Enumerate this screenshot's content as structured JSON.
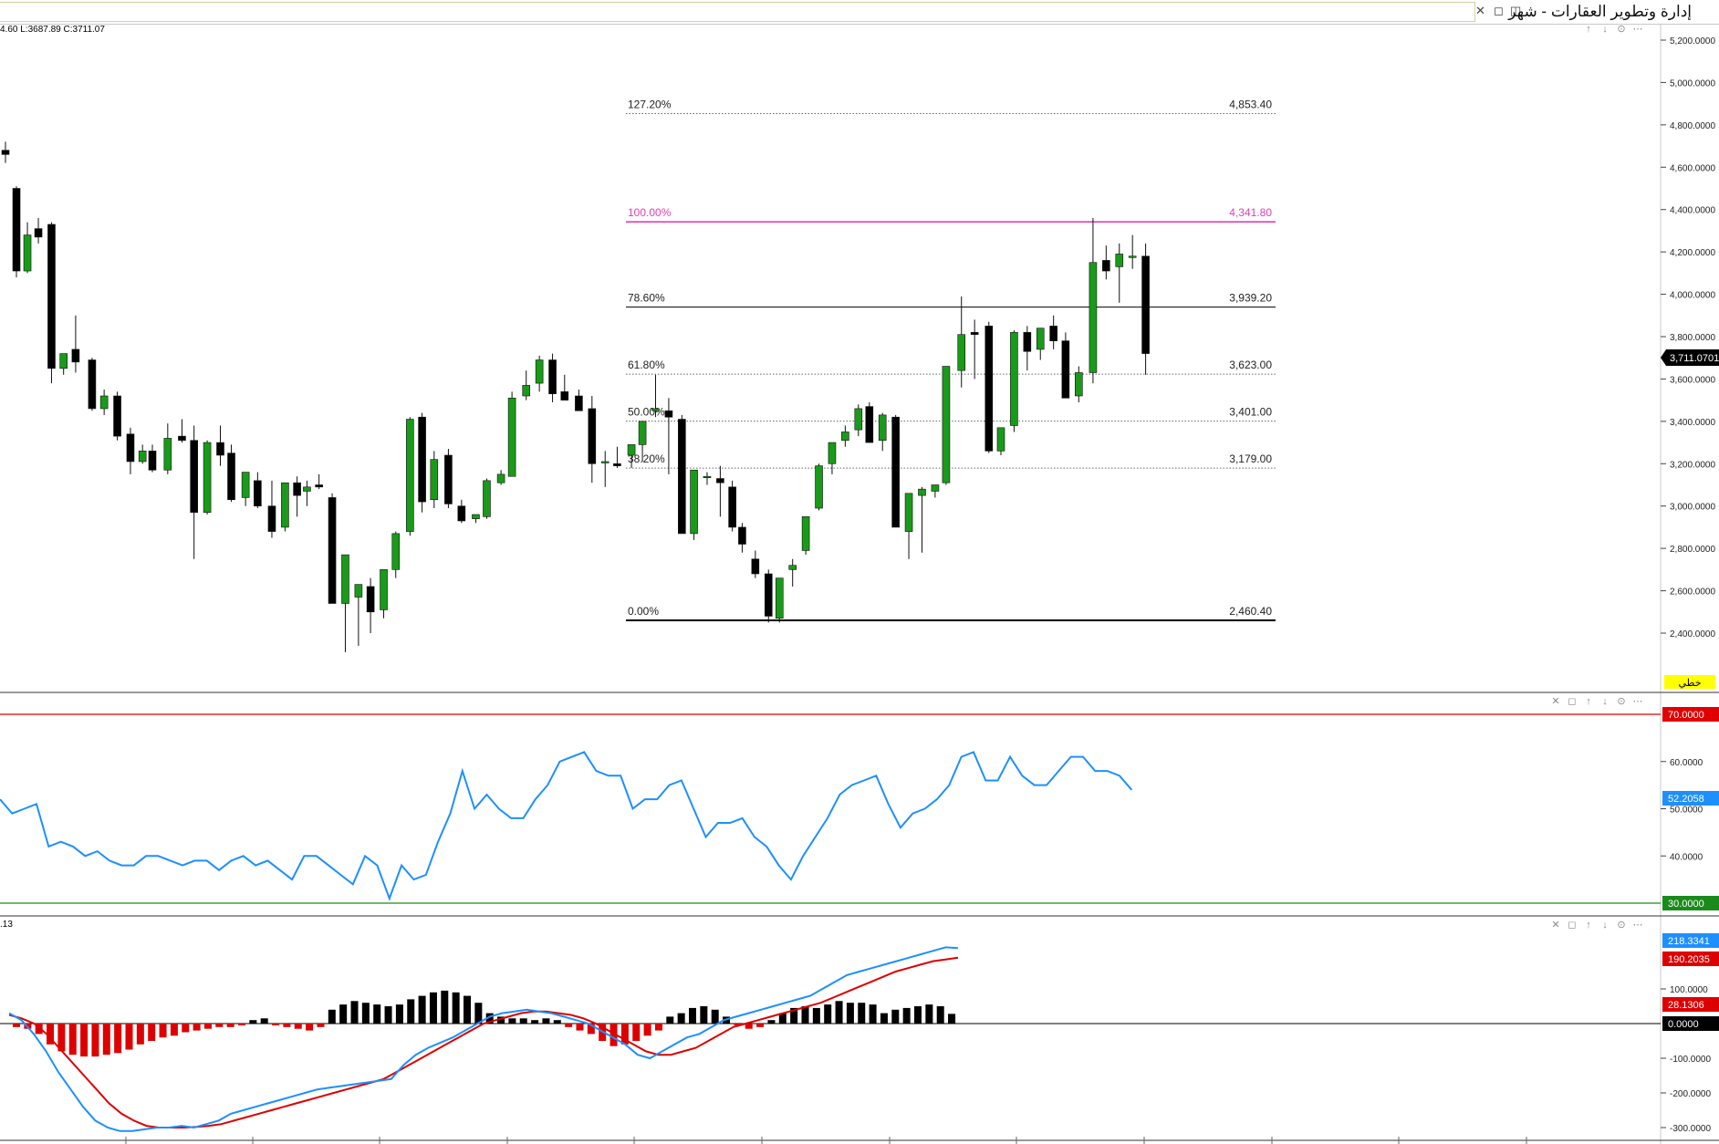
{
  "window": {
    "title": "إدارة وتطوير العقارات - شهر",
    "buttons": {
      "close": "✕",
      "restore": "◻",
      "menu": "◫"
    }
  },
  "colors": {
    "up": "#1a9a1a",
    "down": "#000000",
    "fib100": "#e040b0",
    "rsi_line": "#1e8fff",
    "rsi_upper": "#e00000",
    "rsi_lower": "#1a8a1a",
    "macd_line": "#1e8fff",
    "signal_line": "#dd0000",
    "hist_pos": "#000000",
    "hist_neg": "#dd0000"
  },
  "icons": [
    "minimize-pane-icon",
    "restore-pane-icon",
    "move-up-icon",
    "move-down-icon",
    "settings-icon",
    "more-icon",
    "close-pane-icon"
  ],
  "ohlc_readout": "4.60   L:3687.89   C:3711.07",
  "price_axis": {
    "ticks": [
      "5,200.0000",
      "5,000.0000",
      "4,800.0000",
      "4,600.0000",
      "4,400.0000",
      "4,200.0000",
      "4,000.0000",
      "3,800.0000",
      "3,600.0000",
      "3,400.0000",
      "3,200.0000",
      "3,000.0000",
      "2,800.0000",
      "2,600.0000",
      "2,400.0000"
    ],
    "last_price_label": "3,711.0701",
    "badge": "خطي"
  },
  "fibonacci": [
    {
      "pct": "127.20%",
      "price": "4,853.40"
    },
    {
      "pct": "100.00%",
      "price": "4,341.80"
    },
    {
      "pct": "78.60%",
      "price": "3,939.20"
    },
    {
      "pct": "61.80%",
      "price": "3,623.00"
    },
    {
      "pct": "50.00%",
      "price": "3,401.00"
    },
    {
      "pct": "38.20%",
      "price": "3,179.00"
    },
    {
      "pct": "0.00%",
      "price": "2,460.40"
    }
  ],
  "rsi": {
    "upper": "70.0000",
    "lower": "30.0000",
    "value_label": "52.2058",
    "ticks": [
      "60.0000",
      "50.0000",
      "40.0000"
    ]
  },
  "macd": {
    "corner_label": ".13",
    "macd_label": "218.3341",
    "signal_label": "190.2035",
    "hist_label": "28.1306",
    "zero_label": "0.0000",
    "ticks": [
      "100.0000",
      "-100.0000",
      "-200.0000",
      "-300.0000"
    ]
  }
}
